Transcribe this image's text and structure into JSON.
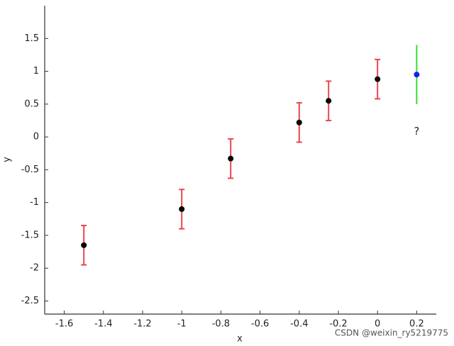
{
  "chart_data": {
    "type": "errorbar_scatter",
    "xlabel": "x",
    "ylabel": "y",
    "xlim": [
      -1.7,
      0.3
    ],
    "ylim": [
      -2.7,
      2
    ],
    "xticks": [
      -1.6,
      -1.4,
      -1.2,
      -1,
      -0.8,
      -0.6,
      -0.4,
      -0.2,
      0,
      0.2
    ],
    "yticks": [
      -2.5,
      -2,
      -1.5,
      -1,
      -0.5,
      0,
      0.5,
      1,
      1.5
    ],
    "series": [
      {
        "color": "#000000",
        "error_color": "#e8464f",
        "caps": true,
        "x": [
          -1.5,
          -1,
          -0.75,
          -0.4,
          -0.25,
          0
        ],
        "values": [
          -1.65,
          -1.1,
          -0.33,
          0.22,
          0.55,
          0.88
        ],
        "errors": [
          0.3,
          0.3,
          0.3,
          0.3,
          0.3,
          0.3
        ]
      },
      {
        "color": "#1a1aff",
        "error_color": "#33dd33",
        "caps": false,
        "x": [
          0.2
        ],
        "values": [
          0.95
        ],
        "errors": [
          0.45
        ]
      }
    ],
    "annotations": [
      {
        "text": "?",
        "x": 0.2,
        "y": 0.08
      }
    ],
    "watermark": "CSDN @weixin_ry5219775"
  }
}
